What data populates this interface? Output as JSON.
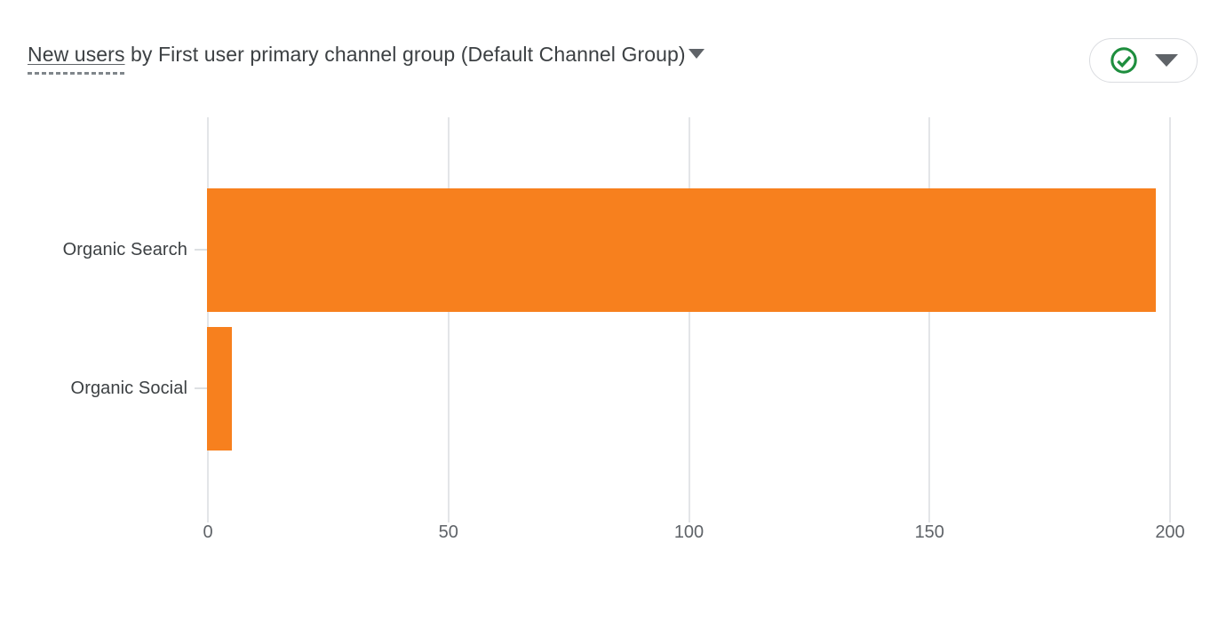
{
  "window": {
    "background": "#ffffff"
  },
  "header": {
    "metric_label": "New users",
    "title_connector": " by ",
    "dimension_label": "First user primary channel group (Default Channel Group)",
    "validity_button": {
      "icon": "check-circle-icon",
      "icon_color": "#1E8E3E",
      "dropdown_icon": "triangle-down-icon",
      "border_color": "#DADCE0"
    }
  },
  "chart_data": {
    "type": "bar",
    "orientation": "horizontal",
    "title": "New users by First user primary channel group (Default Channel Group)",
    "categories": [
      "Organic Search",
      "Organic Social"
    ],
    "values": [
      197,
      5
    ],
    "xlabel": "",
    "ylabel": "",
    "xlim": [
      0,
      200
    ],
    "xticks": [
      0,
      50,
      100,
      150,
      200
    ],
    "grid": true,
    "legend": false,
    "bar_color": "#F7801E",
    "gridline_color": "#E3E5E8",
    "category_tick_color": "#DDE0E3",
    "tick_label_color": "#5F6368",
    "category_label_color": "#3C4043"
  }
}
